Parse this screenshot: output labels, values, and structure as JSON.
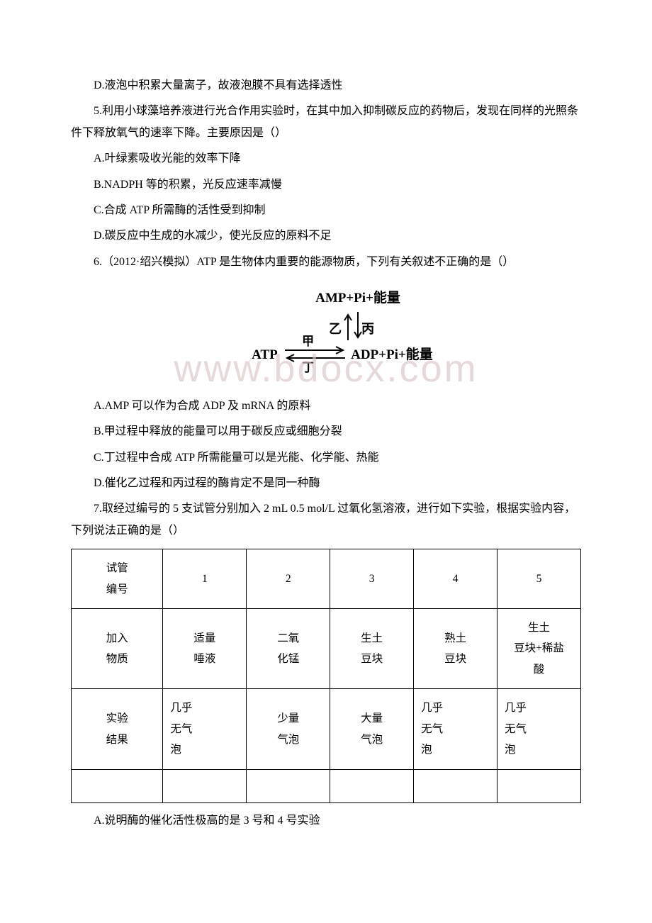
{
  "q4_d": "D.液泡中积累大量离子，故液泡膜不具有选择透性",
  "q5_stem": "5.利用小球藻培养液进行光合作用实验时，在其中加入抑制碳反应的药物后，发现在同样的光照条件下释放氧气的速率下降。主要原因是（）",
  "q5_a": "A.叶绿素吸收光能的效率下降",
  "q5_b": "B.NADPH 等的积累，光反应速率减慢",
  "q5_c": "C.合成 ATP 所需酶的活性受到抑制",
  "q5_d": "D.碳反应中生成的水减少，使光反应的原料不足",
  "q6_stem": "6.（2012·绍兴模拟）ATP 是生物体内重要的能源物质，下列有关叙述不正确的是（）",
  "diagram": {
    "amp": "AMP+Pi+能量",
    "yi": "乙",
    "bing": "丙",
    "atp": "ATP",
    "adp": "ADP+Pi+能量",
    "jia": "甲",
    "ding": "丁"
  },
  "q6_a": "A.AMP 可以作为合成 ADP 及 mRNA 的原料",
  "q6_b": "B.甲过程中释放的能量可以用于碳反应或细胞分裂",
  "q6_c": "C.丁过程中合成 ATP 所需能量可以是光能、化学能、热能",
  "q6_d": "D.催化乙过程和丙过程的酶肯定不是同一种酶",
  "q7_stem": "7.取经过编号的 5 支试管分别加入 2 mL 0.5 mol/L 过氧化氢溶液，进行如下实验，根据实验内容，下列说法正确的是（）",
  "table": {
    "row1": {
      "h": "试管\n编号",
      "c1": "1",
      "c2": "2",
      "c3": "3",
      "c4": "4",
      "c5": "5"
    },
    "row2": {
      "h": "加入\n物质",
      "c1": "适量\n唾液",
      "c2": "二氧\n化锰",
      "c3": "生土\n豆块",
      "c4": "熟土\n豆块",
      "c5": "生土\n豆块+稀盐\n酸"
    },
    "row3": {
      "h": "实验\n结果",
      "c1": "几乎\n无气\n泡",
      "c2": "少量\n气泡",
      "c3": "大量\n气泡",
      "c4": "几乎\n无气\n泡",
      "c5": "几乎\n无气\n泡"
    }
  },
  "q7_a": "A.说明酶的催化活性极高的是 3 号和 4 号实验",
  "watermark": "www.bdocx.com"
}
